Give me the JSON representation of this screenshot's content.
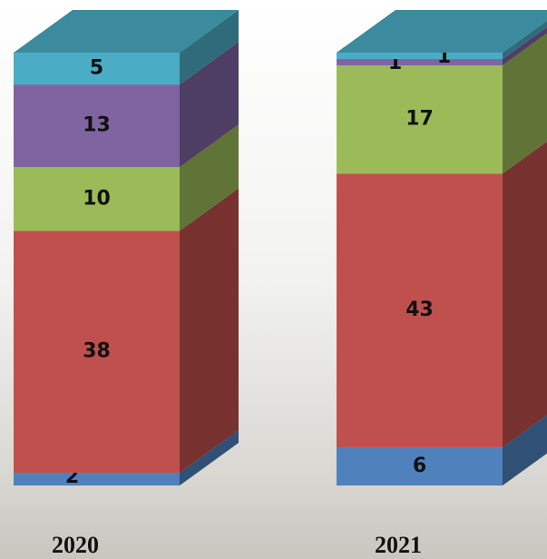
{
  "chart_data": {
    "type": "bar3d-stacked",
    "categories": [
      "2020",
      "2021"
    ],
    "series": [
      {
        "color": "#4f81bd",
        "values": [
          2,
          6
        ]
      },
      {
        "color": "#c0504d",
        "values": [
          38,
          43
        ]
      },
      {
        "color": "#9bbb59",
        "values": [
          10,
          17
        ]
      },
      {
        "color": "#8064a2",
        "values": [
          13,
          1
        ]
      },
      {
        "color": "#4bacc6",
        "values": [
          5,
          1
        ]
      }
    ]
  }
}
